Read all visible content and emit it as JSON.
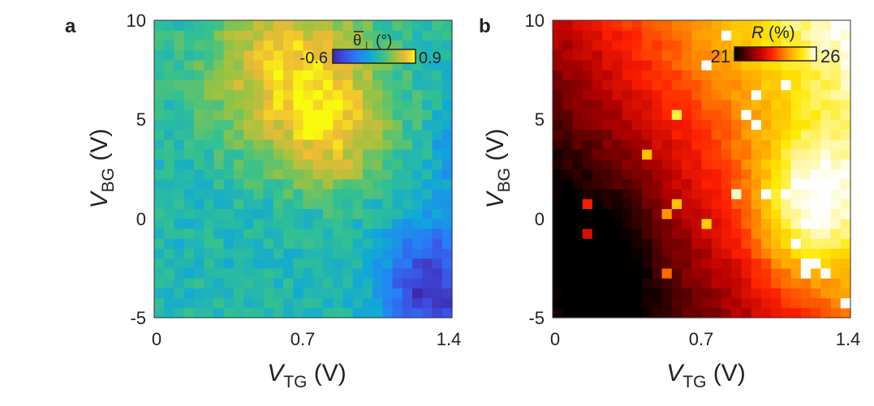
{
  "chart_data": [
    {
      "type": "heatmap",
      "panel_label": "a",
      "xlabel": {
        "main": "V",
        "sub": "TG",
        "unit": " (V)"
      },
      "ylabel": {
        "main": "V",
        "sub": "BG",
        "unit": " (V)"
      },
      "xlim": [
        0,
        1.4
      ],
      "ylim": [
        -5,
        10
      ],
      "xticks": [
        "0",
        "0.7",
        "1.4"
      ],
      "yticks": [
        "-5",
        "0",
        "5",
        "10"
      ],
      "grid": {
        "nx": 30,
        "ny": 30
      },
      "colormap": "parula",
      "colorbar": {
        "title_symbol": "θ",
        "title_sub": "⊥",
        "title_unit": " (°)",
        "min_label": "-0.6",
        "max_label": "0.9",
        "range": [
          -0.6,
          0.9
        ]
      },
      "field": "mostly ~0.1–0.3 (green) across the map; a high region ~0.8–0.9 (yellow) in the upper-middle (V_TG 0.3–1.0 V, V_BG 3–10 V); a low region ~-0.5 (blue) at the lower right (V_TG 1.1–1.4 V, V_BG -5–0 V)"
    },
    {
      "type": "heatmap",
      "panel_label": "b",
      "xlabel": {
        "main": "V",
        "sub": "TG",
        "unit": " (V)"
      },
      "ylabel": {
        "main": "V",
        "sub": "BG",
        "unit": " (V)"
      },
      "xlim": [
        0,
        1.4
      ],
      "ylim": [
        -5,
        10
      ],
      "xticks": [
        "0",
        "0.7",
        "1.4"
      ],
      "yticks": [
        "-5",
        "0",
        "5",
        "10"
      ],
      "grid": {
        "nx": 30,
        "ny": 30
      },
      "colormap": "hot",
      "colorbar": {
        "title_symbol": "R",
        "title_unit": " (%)",
        "min_label": "21",
        "max_label": "26",
        "range": [
          21,
          26
        ]
      },
      "field": "minimum ~21–22 % (dark red/black) at lower left (V_TG 0–0.4 V, V_BG -5–2 V); rising along a diagonal band to a maximum ~26 % (white) near V_TG 1.2 V, V_BG 0.5 V; ~24–25 % (orange/yellow) toward the upper right"
    }
  ]
}
